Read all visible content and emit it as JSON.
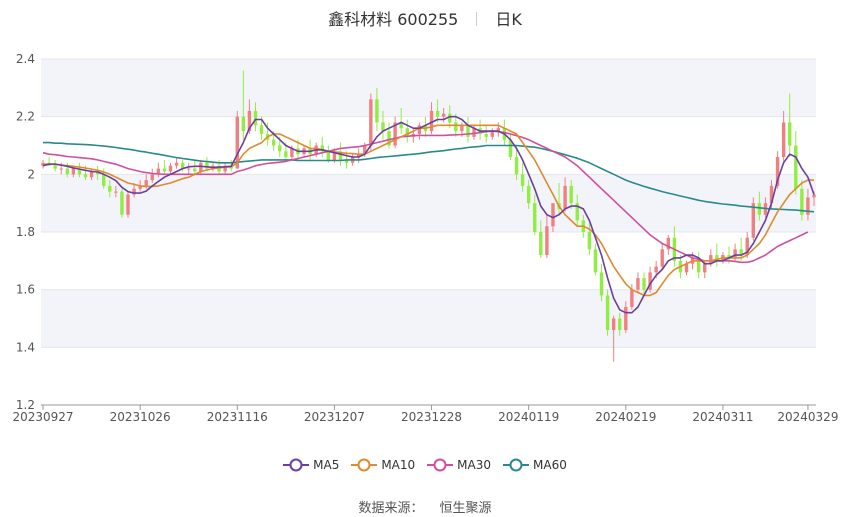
{
  "header": {
    "stock": "鑫科材料 600255",
    "period": "日K"
  },
  "footer": {
    "source_label": "数据来源：",
    "source_value": "恒生聚源"
  },
  "colors": {
    "up": "#f08080",
    "down": "#90ee40",
    "ma5": "#6b3fa0",
    "ma10": "#e08a2e",
    "ma30": "#d050a0",
    "ma60": "#2a8a8a"
  },
  "chart_data": {
    "type": "candlestick",
    "ylim": [
      1.2,
      2.4
    ],
    "yticks": [
      "1.2",
      "1.4",
      "1.6",
      "1.8",
      "2",
      "2.2",
      "2.4"
    ],
    "xticks": [
      "20230927",
      "20231026",
      "20231116",
      "20231207",
      "20231228",
      "20240119",
      "20240219",
      "20240311",
      "20240329"
    ],
    "xtick_index": [
      0,
      16,
      32,
      48,
      64,
      80,
      96,
      112,
      126
    ],
    "legend": [
      {
        "key": "ma5",
        "label": "MA5"
      },
      {
        "key": "ma10",
        "label": "MA10"
      },
      {
        "key": "ma30",
        "label": "MA30"
      },
      {
        "key": "ma60",
        "label": "MA60"
      }
    ],
    "candles": [
      [
        2.03,
        2.05,
        2.04,
        2.02
      ],
      [
        2.04,
        2.06,
        2.03,
        2.03
      ],
      [
        2.03,
        2.05,
        2.02,
        2.01
      ],
      [
        2.02,
        2.04,
        2.02,
        2.0
      ],
      [
        2.02,
        2.04,
        2.0,
        1.99
      ],
      [
        2.0,
        2.03,
        2.02,
        1.99
      ],
      [
        2.02,
        2.04,
        2.0,
        1.99
      ],
      [
        2.0,
        2.03,
        1.99,
        1.98
      ],
      [
        1.99,
        2.02,
        2.01,
        1.98
      ],
      [
        2.01,
        2.03,
        2.0,
        1.98
      ],
      [
        2.0,
        2.02,
        1.96,
        1.95
      ],
      [
        1.96,
        1.98,
        1.94,
        1.92
      ],
      [
        1.94,
        1.96,
        1.94,
        1.92
      ],
      [
        1.94,
        1.95,
        1.86,
        1.85
      ],
      [
        1.86,
        1.94,
        1.93,
        1.85
      ],
      [
        1.93,
        1.97,
        1.95,
        1.92
      ],
      [
        1.95,
        1.98,
        1.96,
        1.94
      ],
      [
        1.96,
        2.0,
        1.98,
        1.95
      ],
      [
        1.98,
        2.02,
        2.0,
        1.97
      ],
      [
        2.0,
        2.04,
        2.02,
        1.99
      ],
      [
        2.02,
        2.05,
        2.01,
        2.0
      ],
      [
        2.01,
        2.04,
        2.03,
        2.0
      ],
      [
        2.03,
        2.06,
        2.04,
        2.02
      ],
      [
        2.04,
        2.05,
        2.02,
        2.01
      ],
      [
        2.02,
        2.04,
        2.02,
        2.0
      ],
      [
        2.02,
        2.05,
        2.01,
        2.0
      ],
      [
        2.01,
        2.05,
        2.04,
        2.0
      ],
      [
        2.04,
        2.06,
        2.02,
        2.01
      ],
      [
        2.02,
        2.04,
        2.03,
        2.01
      ],
      [
        2.03,
        2.05,
        2.01,
        2.0
      ],
      [
        2.01,
        2.04,
        2.03,
        2.0
      ],
      [
        2.03,
        2.05,
        2.02,
        2.01
      ],
      [
        2.02,
        2.22,
        2.2,
        2.02
      ],
      [
        2.2,
        2.36,
        2.15,
        2.12
      ],
      [
        2.15,
        2.26,
        2.22,
        2.14
      ],
      [
        2.22,
        2.25,
        2.17,
        2.15
      ],
      [
        2.17,
        2.2,
        2.14,
        2.12
      ],
      [
        2.14,
        2.18,
        2.12,
        2.1
      ],
      [
        2.12,
        2.15,
        2.1,
        2.08
      ],
      [
        2.1,
        2.13,
        2.08,
        2.06
      ],
      [
        2.08,
        2.11,
        2.06,
        2.05
      ],
      [
        2.06,
        2.1,
        2.09,
        2.05
      ],
      [
        2.09,
        2.12,
        2.07,
        2.05
      ],
      [
        2.07,
        2.1,
        2.09,
        2.06
      ],
      [
        2.09,
        2.12,
        2.07,
        2.05
      ],
      [
        2.07,
        2.11,
        2.1,
        2.06
      ],
      [
        2.1,
        2.13,
        2.08,
        2.06
      ],
      [
        2.08,
        2.1,
        2.05,
        2.04
      ],
      [
        2.05,
        2.09,
        2.08,
        2.04
      ],
      [
        2.08,
        2.11,
        2.05,
        2.03
      ],
      [
        2.05,
        2.08,
        2.04,
        2.02
      ],
      [
        2.04,
        2.07,
        2.06,
        2.03
      ],
      [
        2.06,
        2.09,
        2.07,
        2.04
      ],
      [
        2.07,
        2.11,
        2.1,
        2.06
      ],
      [
        2.1,
        2.28,
        2.26,
        2.08
      ],
      [
        2.26,
        2.3,
        2.18,
        2.15
      ],
      [
        2.18,
        2.22,
        2.15,
        2.12
      ],
      [
        2.15,
        2.18,
        2.1,
        2.09
      ],
      [
        2.1,
        2.2,
        2.18,
        2.09
      ],
      [
        2.18,
        2.23,
        2.16,
        2.14
      ],
      [
        2.16,
        2.19,
        2.13,
        2.11
      ],
      [
        2.13,
        2.16,
        2.14,
        2.11
      ],
      [
        2.14,
        2.18,
        2.17,
        2.12
      ],
      [
        2.17,
        2.2,
        2.15,
        2.13
      ],
      [
        2.15,
        2.25,
        2.22,
        2.14
      ],
      [
        2.22,
        2.26,
        2.2,
        2.18
      ],
      [
        2.2,
        2.23,
        2.21,
        2.18
      ],
      [
        2.21,
        2.24,
        2.18,
        2.16
      ],
      [
        2.18,
        2.21,
        2.15,
        2.13
      ],
      [
        2.15,
        2.18,
        2.17,
        2.13
      ],
      [
        2.17,
        2.2,
        2.13,
        2.11
      ],
      [
        2.13,
        2.17,
        2.16,
        2.12
      ],
      [
        2.16,
        2.19,
        2.14,
        2.12
      ],
      [
        2.14,
        2.17,
        2.13,
        2.11
      ],
      [
        2.13,
        2.16,
        2.15,
        2.12
      ],
      [
        2.15,
        2.18,
        2.16,
        2.13
      ],
      [
        2.16,
        2.19,
        2.12,
        2.1
      ],
      [
        2.12,
        2.14,
        2.06,
        2.05
      ],
      [
        2.06,
        2.1,
        2.0,
        1.98
      ],
      [
        2.0,
        2.04,
        1.96,
        1.94
      ],
      [
        1.96,
        1.98,
        1.9,
        1.88
      ],
      [
        1.9,
        1.93,
        1.8,
        1.79
      ],
      [
        1.8,
        1.84,
        1.72,
        1.71
      ],
      [
        1.72,
        1.86,
        1.82,
        1.71
      ],
      [
        1.82,
        1.9,
        1.9,
        1.8
      ],
      [
        1.9,
        1.97,
        1.88,
        1.86
      ],
      [
        1.88,
        1.99,
        1.96,
        1.87
      ],
      [
        1.96,
        1.98,
        1.9,
        1.88
      ],
      [
        1.9,
        1.93,
        1.84,
        1.82
      ],
      [
        1.84,
        1.86,
        1.8,
        1.78
      ],
      [
        1.8,
        1.83,
        1.74,
        1.72
      ],
      [
        1.74,
        1.76,
        1.66,
        1.65
      ],
      [
        1.66,
        1.69,
        1.58,
        1.56
      ],
      [
        1.58,
        1.6,
        1.46,
        1.44
      ],
      [
        1.46,
        1.51,
        1.5,
        1.35
      ],
      [
        1.5,
        1.52,
        1.46,
        1.44
      ],
      [
        1.46,
        1.56,
        1.54,
        1.45
      ],
      [
        1.54,
        1.62,
        1.6,
        1.53
      ],
      [
        1.6,
        1.66,
        1.64,
        1.59
      ],
      [
        1.64,
        1.66,
        1.6,
        1.58
      ],
      [
        1.6,
        1.68,
        1.66,
        1.59
      ],
      [
        1.66,
        1.7,
        1.68,
        1.64
      ],
      [
        1.68,
        1.76,
        1.74,
        1.67
      ],
      [
        1.74,
        1.79,
        1.78,
        1.72
      ],
      [
        1.78,
        1.82,
        1.7,
        1.68
      ],
      [
        1.7,
        1.72,
        1.66,
        1.64
      ],
      [
        1.66,
        1.7,
        1.69,
        1.65
      ],
      [
        1.69,
        1.73,
        1.71,
        1.67
      ],
      [
        1.71,
        1.73,
        1.66,
        1.64
      ],
      [
        1.66,
        1.7,
        1.69,
        1.64
      ],
      [
        1.69,
        1.74,
        1.72,
        1.68
      ],
      [
        1.72,
        1.76,
        1.7,
        1.68
      ],
      [
        1.7,
        1.73,
        1.72,
        1.69
      ],
      [
        1.72,
        1.75,
        1.71,
        1.69
      ],
      [
        1.71,
        1.76,
        1.74,
        1.7
      ],
      [
        1.74,
        1.78,
        1.72,
        1.7
      ],
      [
        1.72,
        1.8,
        1.78,
        1.71
      ],
      [
        1.78,
        1.92,
        1.9,
        1.77
      ],
      [
        1.9,
        1.94,
        1.86,
        1.84
      ],
      [
        1.86,
        1.92,
        1.9,
        1.85
      ],
      [
        1.9,
        1.98,
        1.96,
        1.88
      ],
      [
        1.96,
        2.08,
        2.06,
        1.95
      ],
      [
        2.06,
        2.22,
        2.18,
        2.04
      ],
      [
        2.18,
        2.28,
        2.1,
        2.06
      ],
      [
        2.1,
        2.15,
        1.95,
        1.93
      ],
      [
        1.95,
        1.98,
        1.86,
        1.84
      ],
      [
        1.86,
        1.95,
        1.92,
        1.84
      ],
      [
        1.92,
        1.94,
        1.93,
        1.89
      ]
    ],
    "ma5": [
      2.03,
      2.035,
      2.036,
      2.032,
      2.028,
      2.022,
      2.018,
      2.014,
      2.01,
      2.008,
      2.0,
      1.99,
      1.978,
      1.955,
      1.94,
      1.935,
      1.935,
      1.942,
      1.96,
      1.975,
      1.99,
      2.0,
      2.01,
      2.02,
      2.026,
      2.028,
      2.028,
      2.026,
      2.024,
      2.025,
      2.026,
      2.028,
      2.07,
      2.11,
      2.16,
      2.19,
      2.19,
      2.16,
      2.14,
      2.12,
      2.1,
      2.09,
      2.08,
      2.08,
      2.08,
      2.085,
      2.085,
      2.08,
      2.075,
      2.07,
      2.065,
      2.06,
      2.06,
      2.07,
      2.1,
      2.13,
      2.15,
      2.16,
      2.17,
      2.18,
      2.17,
      2.16,
      2.16,
      2.17,
      2.18,
      2.19,
      2.19,
      2.2,
      2.2,
      2.19,
      2.17,
      2.16,
      2.15,
      2.15,
      2.15,
      2.15,
      2.14,
      2.12,
      2.09,
      2.05,
      2.0,
      1.95,
      1.89,
      1.86,
      1.85,
      1.86,
      1.88,
      1.89,
      1.89,
      1.88,
      1.84,
      1.78,
      1.72,
      1.64,
      1.57,
      1.53,
      1.52,
      1.52,
      1.54,
      1.58,
      1.62,
      1.65,
      1.67,
      1.7,
      1.71,
      1.71,
      1.72,
      1.72,
      1.71,
      1.69,
      1.69,
      1.7,
      1.7,
      1.71,
      1.72,
      1.72,
      1.73,
      1.76,
      1.8,
      1.84,
      1.9,
      1.98,
      2.04,
      2.07,
      2.06,
      2.02,
      1.99,
      1.93
    ],
    "ma10": [
      2.035,
      2.035,
      2.034,
      2.032,
      2.03,
      2.028,
      2.025,
      2.022,
      2.018,
      2.014,
      2.008,
      2.0,
      1.99,
      1.98,
      1.97,
      1.965,
      1.96,
      1.958,
      1.958,
      1.96,
      1.965,
      1.97,
      1.978,
      1.985,
      1.99,
      2.0,
      2.01,
      2.015,
      2.02,
      2.022,
      2.025,
      2.026,
      2.04,
      2.07,
      2.09,
      2.1,
      2.11,
      2.13,
      2.14,
      2.14,
      2.13,
      2.12,
      2.11,
      2.1,
      2.09,
      2.09,
      2.085,
      2.08,
      2.078,
      2.075,
      2.073,
      2.072,
      2.07,
      2.07,
      2.08,
      2.09,
      2.1,
      2.11,
      2.12,
      2.13,
      2.14,
      2.15,
      2.16,
      2.16,
      2.165,
      2.17,
      2.17,
      2.17,
      2.17,
      2.17,
      2.17,
      2.17,
      2.17,
      2.17,
      2.17,
      2.17,
      2.16,
      2.15,
      2.14,
      2.11,
      2.08,
      2.05,
      2.01,
      1.97,
      1.93,
      1.89,
      1.86,
      1.84,
      1.82,
      1.82,
      1.81,
      1.79,
      1.76,
      1.72,
      1.68,
      1.65,
      1.62,
      1.6,
      1.59,
      1.58,
      1.58,
      1.59,
      1.62,
      1.65,
      1.67,
      1.68,
      1.69,
      1.7,
      1.7,
      1.7,
      1.7,
      1.705,
      1.71,
      1.71,
      1.71,
      1.71,
      1.72,
      1.74,
      1.76,
      1.79,
      1.83,
      1.87,
      1.9,
      1.93,
      1.95,
      1.97,
      1.98,
      1.98
    ],
    "ma30": [
      2.075,
      2.07,
      2.068,
      2.065,
      2.062,
      2.06,
      2.058,
      2.056,
      2.054,
      2.05,
      2.045,
      2.04,
      2.035,
      2.028,
      2.02,
      2.015,
      2.01,
      2.006,
      2.003,
      2.001,
      2.0,
      2.0,
      2.0,
      2.0,
      2.0,
      2.0,
      2.0,
      2.0,
      2.0,
      2.0,
      2.0,
      2.0,
      2.01,
      2.015,
      2.022,
      2.03,
      2.034,
      2.038,
      2.04,
      2.042,
      2.045,
      2.05,
      2.055,
      2.06,
      2.065,
      2.07,
      2.075,
      2.08,
      2.085,
      2.09,
      2.092,
      2.094,
      2.096,
      2.1,
      2.105,
      2.11,
      2.115,
      2.12,
      2.125,
      2.13,
      2.132,
      2.134,
      2.135,
      2.135,
      2.135,
      2.135,
      2.135,
      2.136,
      2.137,
      2.138,
      2.14,
      2.142,
      2.145,
      2.148,
      2.15,
      2.148,
      2.145,
      2.14,
      2.134,
      2.128,
      2.12,
      2.11,
      2.1,
      2.09,
      2.08,
      2.07,
      2.06,
      2.045,
      2.03,
      2.01,
      1.99,
      1.97,
      1.95,
      1.93,
      1.91,
      1.89,
      1.87,
      1.85,
      1.83,
      1.81,
      1.79,
      1.775,
      1.76,
      1.75,
      1.74,
      1.73,
      1.72,
      1.71,
      1.705,
      1.7,
      1.7,
      1.7,
      1.7,
      1.7,
      1.698,
      1.695,
      1.695,
      1.7,
      1.71,
      1.72,
      1.735,
      1.75,
      1.76,
      1.77,
      1.78,
      1.79,
      1.8
    ],
    "ma60": [
      2.11,
      2.11,
      2.108,
      2.108,
      2.106,
      2.105,
      2.104,
      2.103,
      2.102,
      2.1,
      2.098,
      2.096,
      2.093,
      2.09,
      2.087,
      2.084,
      2.08,
      2.077,
      2.073,
      2.07,
      2.066,
      2.062,
      2.058,
      2.055,
      2.052,
      2.049,
      2.046,
      2.044,
      2.042,
      2.04,
      2.04,
      2.04,
      2.042,
      2.044,
      2.046,
      2.048,
      2.05,
      2.05,
      2.05,
      2.05,
      2.05,
      2.05,
      2.048,
      2.048,
      2.048,
      2.048,
      2.048,
      2.048,
      2.048,
      2.048,
      2.05,
      2.05,
      2.05,
      2.052,
      2.055,
      2.058,
      2.06,
      2.062,
      2.064,
      2.066,
      2.068,
      2.07,
      2.072,
      2.075,
      2.078,
      2.08,
      2.082,
      2.085,
      2.088,
      2.09,
      2.093,
      2.095,
      2.097,
      2.1,
      2.1,
      2.1,
      2.1,
      2.1,
      2.1,
      2.098,
      2.096,
      2.094,
      2.09,
      2.085,
      2.08,
      2.074,
      2.068,
      2.062,
      2.056,
      2.048,
      2.04,
      2.03,
      2.02,
      2.01,
      2.0,
      1.99,
      1.98,
      1.972,
      1.965,
      1.958,
      1.952,
      1.946,
      1.94,
      1.935,
      1.93,
      1.925,
      1.92,
      1.915,
      1.91,
      1.906,
      1.903,
      1.9,
      1.897,
      1.895,
      1.893,
      1.89,
      1.888,
      1.886,
      1.884,
      1.882,
      1.88,
      1.879,
      1.878,
      1.877,
      1.876,
      1.874,
      1.872,
      1.87
    ]
  }
}
